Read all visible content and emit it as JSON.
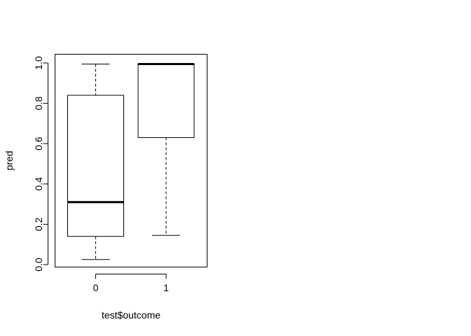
{
  "chart_data": {
    "type": "box",
    "title": "",
    "xlabel": "test$outcome",
    "ylabel": "pred",
    "categories": [
      "0",
      "1"
    ],
    "ylim": [
      -0.01,
      1.03
    ],
    "y_ticks": [
      0.0,
      0.2,
      0.4,
      0.6,
      0.8,
      1.0
    ],
    "y_tick_labels": [
      "0.0",
      "0.2",
      "0.4",
      "0.6",
      "0.8",
      "1.0"
    ],
    "boxes": [
      {
        "category": "0",
        "whisker_low": 0.025,
        "q1": 0.14,
        "median": 0.31,
        "q3": 0.84,
        "whisker_high": 0.995
      },
      {
        "category": "1",
        "whisker_low": 0.145,
        "q1": 0.63,
        "median": 0.995,
        "q3": 0.995,
        "whisker_high": 0.995
      }
    ],
    "grid": false,
    "legend": "none"
  }
}
